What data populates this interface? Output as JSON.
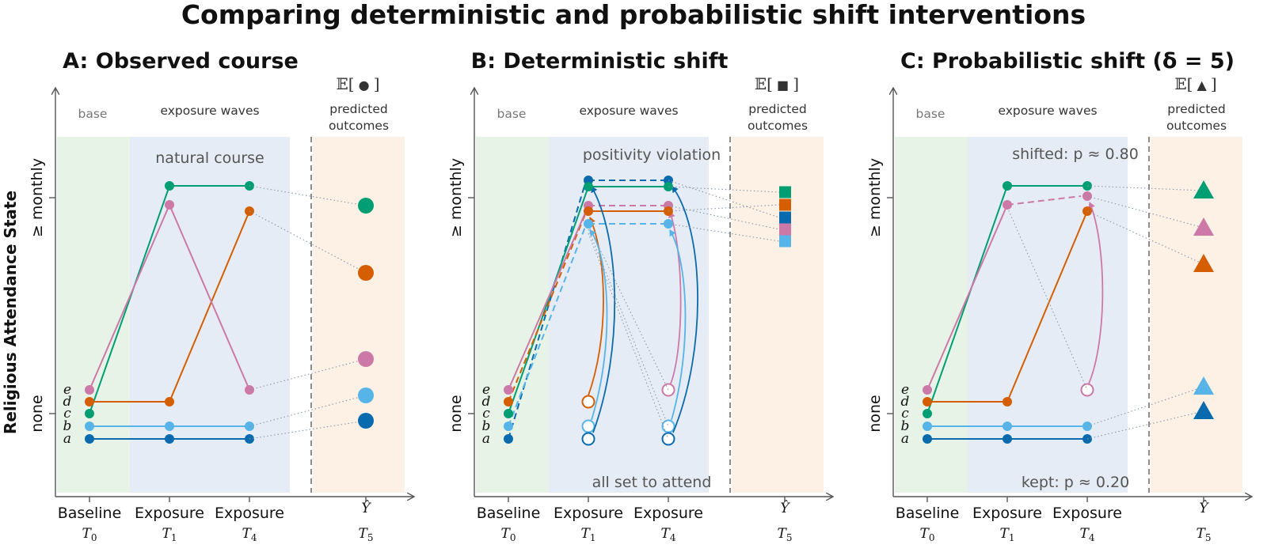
{
  "title": "Comparing deterministic and probabilistic shift interventions",
  "colors": {
    "a": "#0a6aae",
    "b": "#56b4e9",
    "c": "#009e73",
    "d": "#d55e00",
    "e": "#cc79a7",
    "base_bg": "#e7f3e7",
    "exp_bg": "#e6ecf5",
    "out_bg": "#fdf0e4",
    "violation": "#c8383f"
  },
  "y_axis": {
    "label": "Religious Attendance State",
    "tick_top": "≥ monthly",
    "tick_bottom": "none"
  },
  "zones": {
    "base": "base",
    "exposure": "exposure waves",
    "outcome_symbol_prefix": "𝔼[",
    "outcome_symbol_suffix": "]",
    "outcome_line1": "predicted",
    "outcome_line2": "outcomes"
  },
  "x_ticks": [
    {
      "line1": "Baseline",
      "line2": "T",
      "sub": "0"
    },
    {
      "line1": "Exposure",
      "line2": "T",
      "sub": "1"
    },
    {
      "line1": "Exposure",
      "line2": "T",
      "sub": "4"
    },
    {
      "line1": "Ŷ",
      "line2": "T",
      "sub": "5"
    }
  ],
  "individuals": [
    "e",
    "d",
    "c",
    "b",
    "a"
  ],
  "panels": [
    {
      "title": "A: Observed course",
      "symbol_glyph": "●",
      "symbol_name": "circle",
      "annotation_top": "natural course",
      "annotation_bottom": ""
    },
    {
      "title": "B: Deterministic shift",
      "symbol_glyph": "■",
      "symbol_name": "square",
      "annotation_top": "positivity violation",
      "annotation_bottom": "all set to attend"
    },
    {
      "title": "C: Probabilistic shift (δ = 5)",
      "symbol_glyph": "▲",
      "symbol_name": "triangle",
      "annotation_top": "shifted: p ≈ 0.80",
      "annotation_bottom": "kept: p ≈ 0.20"
    }
  ]
}
